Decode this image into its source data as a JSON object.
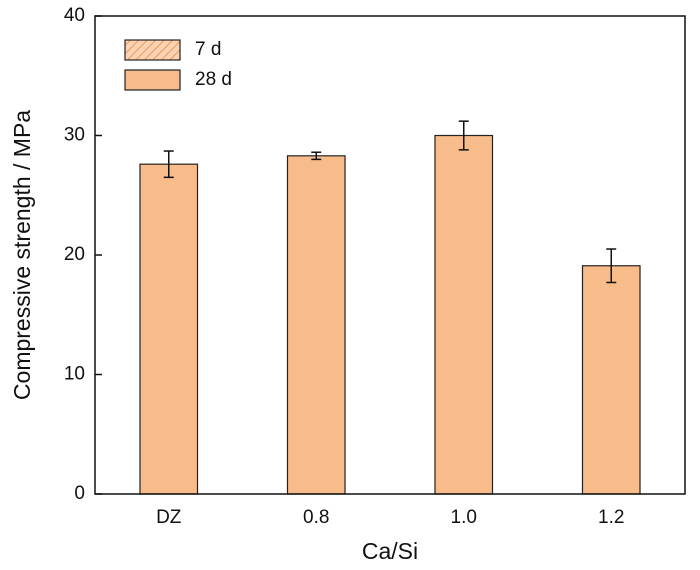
{
  "chart_data": {
    "type": "bar",
    "xlabel": "Ca/Si",
    "ylabel": "Compressive strength / MPa",
    "categories": [
      "DZ",
      "0.8",
      "1.0",
      "1.2"
    ],
    "series": [
      {
        "name": "7 d",
        "color": "#f8bb8a",
        "hatch": true,
        "values": [
          null,
          null,
          null,
          null
        ]
      },
      {
        "name": "28 d",
        "color": "#f8bb8a",
        "values": [
          27.6,
          28.3,
          30.0,
          19.1
        ],
        "error": [
          1.1,
          0.3,
          1.2,
          1.4
        ]
      }
    ],
    "ylim": [
      0,
      40
    ],
    "yticks": [
      0,
      10,
      20,
      30,
      40
    ],
    "legend": "upper left"
  }
}
